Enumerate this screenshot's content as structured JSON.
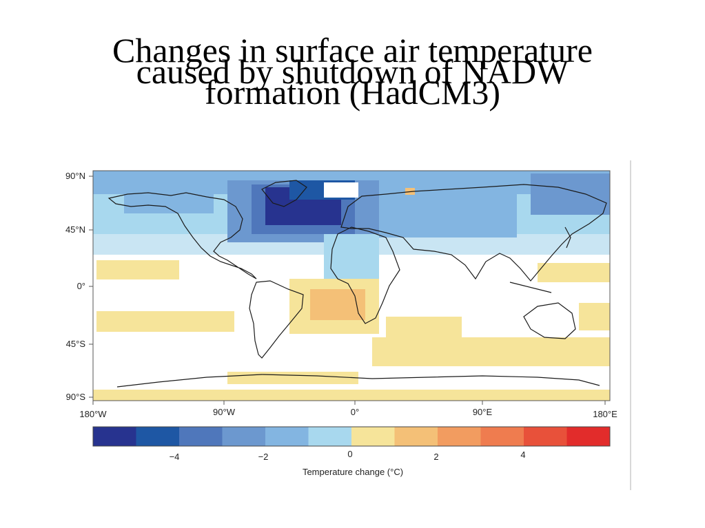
{
  "slide": {
    "title_lines": [
      "Changes in surface air temperature",
      "caused by shutdown of NADW",
      "formation (HadCM3)"
    ]
  },
  "map": {
    "lat_labels": [
      "90°N",
      "45°N",
      "0°",
      "45°S",
      "90°S"
    ],
    "lon_labels": [
      "180°W",
      "90°W",
      "0°",
      "90°E",
      "180°E"
    ],
    "lat_ticks": [
      90,
      45,
      0,
      -45,
      -90
    ],
    "lon_ticks": [
      -180,
      -90,
      0,
      90,
      180
    ],
    "background_color": "#ffffff"
  },
  "colorbar": {
    "label": "Temperature change (°C)",
    "tick_labels": [
      "−4",
      "−2",
      "0",
      "2",
      "4"
    ],
    "tick_values": [
      -4,
      -2,
      0,
      2,
      4
    ],
    "colors": [
      "#27338f",
      "#1e57a4",
      "#4f77bb",
      "#6c98cf",
      "#83b5e1",
      "#a8d8ee",
      "#f6e49a",
      "#f4c077",
      "#f29c60",
      "#ef7c4f",
      "#e8513a",
      "#e22c2b"
    ]
  }
}
